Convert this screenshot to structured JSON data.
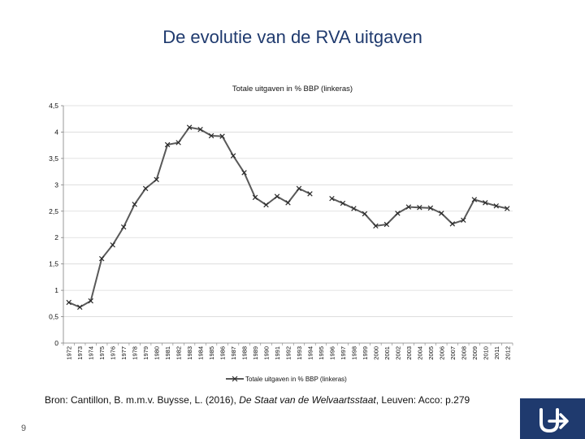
{
  "slide": {
    "title": "De evolutie van de RVA uitgaven",
    "page_number": "9",
    "source_prefix": "Bron: Cantillon, B. m.m.v. Buysse, L. (2016), ",
    "source_title": "De Staat van de Welvaartsstaat",
    "source_suffix": ", Leuven: Acco: p.279"
  },
  "colors": {
    "title": "#1f3a6e",
    "line": "#595959",
    "marker": "#2b2b2b",
    "grid": "#d9d9d9",
    "axis": "#7f7f7f",
    "brand": "#1f3a6e"
  },
  "logo": {
    "icon": "university-logo-icon"
  },
  "chart_data": {
    "type": "line",
    "title": "Totale uitgaven in % BBP (linkeras)",
    "xlabel": "",
    "ylabel": "",
    "ylim": [
      0,
      4.5
    ],
    "yticks": [
      0,
      0.5,
      1,
      1.5,
      2,
      2.5,
      3,
      3.5,
      4,
      4.5
    ],
    "ytick_labels": [
      "0",
      "0,5",
      "1",
      "1,5",
      "2",
      "2,5",
      "3",
      "3,5",
      "4",
      "4,5"
    ],
    "grid": true,
    "legend": "bottom",
    "categories": [
      "1972",
      "1973",
      "1974",
      "1975",
      "1976",
      "1977",
      "1978",
      "1979",
      "1980",
      "1981",
      "1982",
      "1983",
      "1984",
      "1985",
      "1986",
      "1987",
      "1988",
      "1989",
      "1990",
      "1991",
      "1992",
      "1993",
      "1994",
      "1995",
      "1996",
      "1997",
      "1998",
      "1999",
      "2000",
      "2001",
      "2002",
      "2003",
      "2004",
      "2005",
      "2006",
      "2007",
      "2008",
      "2009",
      "2010",
      "2011",
      "2012"
    ],
    "series": [
      {
        "name": "Totale uitgaven in % BBP (linkeras)",
        "marker": "x",
        "values": [
          0.77,
          0.68,
          0.8,
          1.6,
          1.86,
          2.2,
          2.63,
          2.93,
          3.1,
          3.76,
          3.8,
          4.09,
          4.05,
          3.93,
          3.92,
          3.55,
          3.23,
          2.76,
          2.62,
          2.78,
          2.66,
          2.93,
          2.83,
          null,
          2.74,
          2.65,
          2.55,
          2.45,
          2.22,
          2.25,
          2.46,
          2.58,
          2.57,
          2.56,
          2.46,
          2.26,
          2.33,
          2.72,
          2.66,
          2.6,
          2.55
        ]
      }
    ]
  }
}
